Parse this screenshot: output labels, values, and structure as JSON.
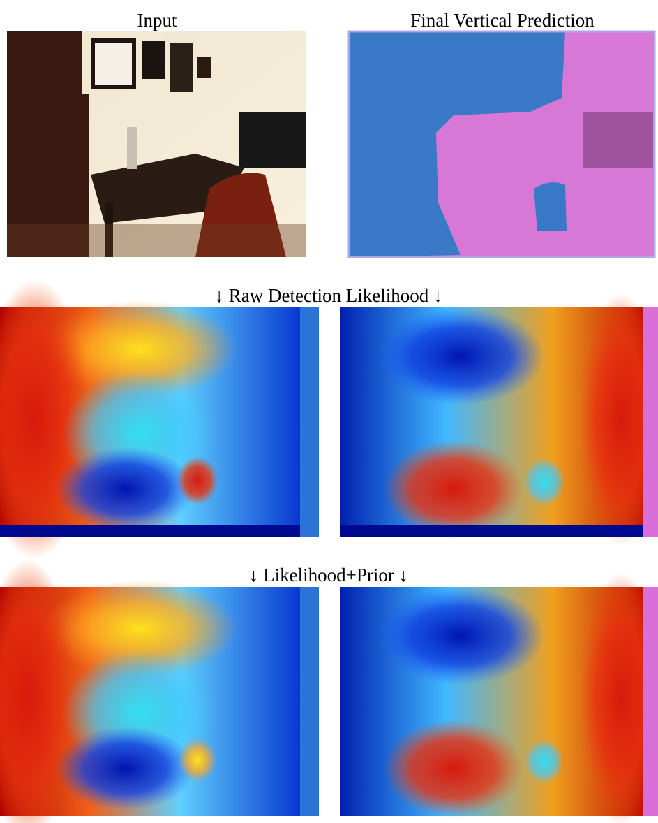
{
  "header": {
    "input_title": "Input",
    "prediction_title": "Final Vertical Prediction"
  },
  "rows": [
    {
      "label": "↓ Raw Detection Likelihood ↓"
    },
    {
      "label": "↓ Likelihood+Prior ↓"
    }
  ]
}
